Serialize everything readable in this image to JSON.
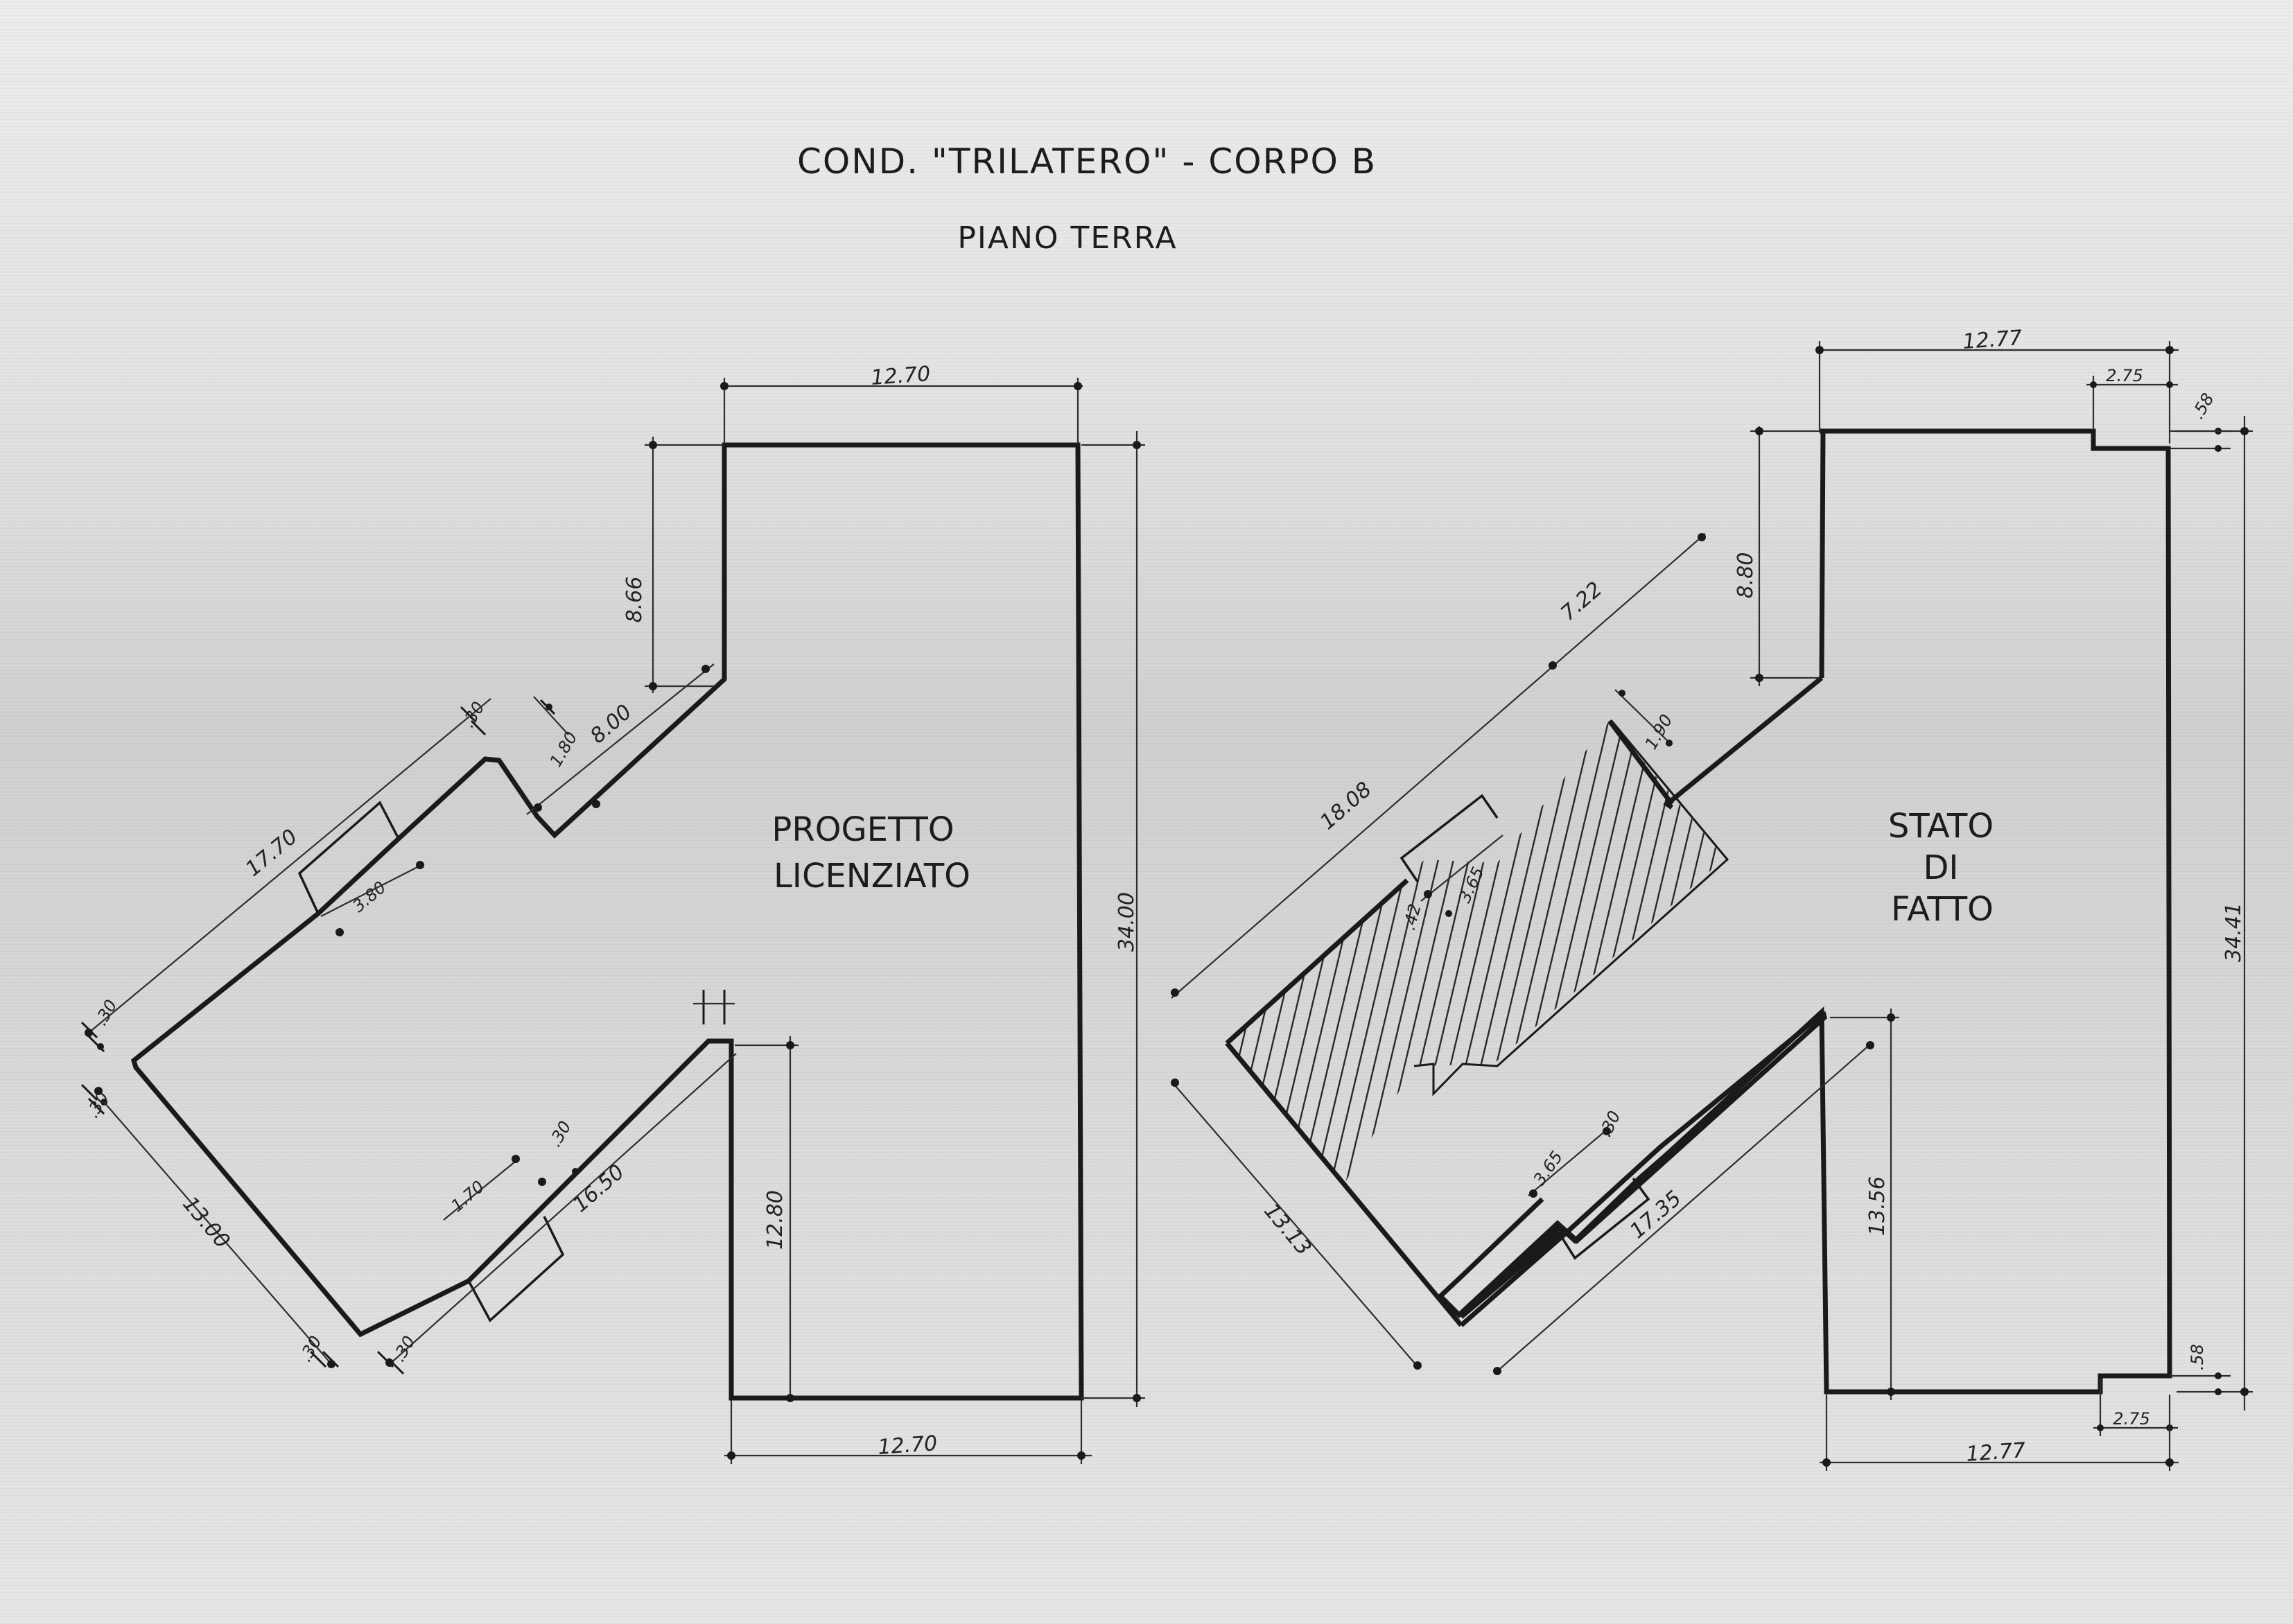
{
  "title": {
    "line1": "COND. \"TRILATERO\" - CORPO B",
    "line2": "PIANO TERRA"
  },
  "plans": {
    "left": {
      "label_line1": "PROGETTO",
      "label_line2": "LICENZIATO",
      "dims": {
        "top_width": "12.70",
        "bottom_width": "12.70",
        "right_height": "34.00",
        "notch_height": "8.66",
        "diag_upper": "8.00",
        "step_a": "1.80",
        "step_b": ".30",
        "upper_long": "17.70",
        "upper_recess": "3.80",
        "end_a": ".30",
        "end_b": ".30",
        "left_side": "13.00",
        "lower_long": "16.50",
        "lower_recess": "1.70",
        "lower_step": ".30",
        "inner_height": "12.80",
        "bottom_a": ".30",
        "bottom_b": ".30"
      }
    },
    "right": {
      "label_line1": "STATO",
      "label_line2": "DI",
      "label_line3": "FATTO",
      "dims": {
        "top_width": "12.77",
        "top_notch": "2.75",
        "top_notch_h": ".58",
        "bottom_width": "12.77",
        "bottom_notch": "2.75",
        "bottom_notch_h": ".58",
        "right_height": "34.41",
        "notch_height": "8.80",
        "diag_upper": "7.22",
        "step": "1.90",
        "upper_long": "18.08",
        "recess": "3.65",
        "recess_depth": ".42",
        "left_side": "13.13",
        "lower_recess": "3.65",
        "lower_step": ".30",
        "lower_long": "17.35",
        "inner_height": "13.56"
      }
    }
  }
}
